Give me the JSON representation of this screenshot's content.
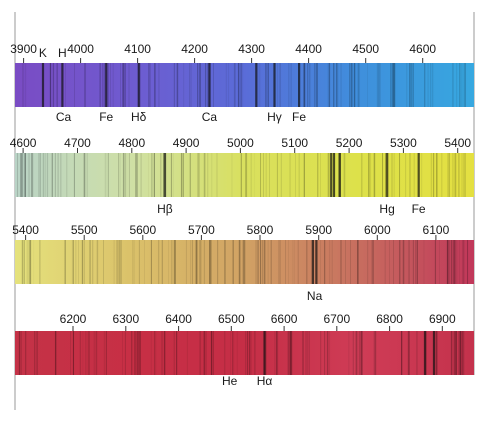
{
  "colors": {
    "frame": "#9a9a9a",
    "label": "#1a1a1a",
    "band_1": [
      "#7a4cc4",
      "#6f5bd0",
      "#5a6cd8",
      "#3f8fdc",
      "#37a8e0"
    ],
    "band_2": [
      "#b9d3c6",
      "#cfe0a6",
      "#d9e05e",
      "#dde14a",
      "#e4e041"
    ],
    "band_3": [
      "#e5e27c",
      "#dbc26a",
      "#d1a264",
      "#c76d5f",
      "#c1375a"
    ],
    "band_4": [
      "#c43247",
      "#c72f45",
      "#c52e46",
      "#cf3c56",
      "#c4324c"
    ]
  },
  "bands": [
    {
      "ticks": [
        {
          "label": "3900",
          "w": 3900
        },
        {
          "label": "4000",
          "w": 4000
        },
        {
          "label": "4100",
          "w": 4100
        },
        {
          "label": "4200",
          "w": 4200
        },
        {
          "label": "4300",
          "w": 4300
        },
        {
          "label": "4400",
          "w": 4400
        },
        {
          "label": "4500",
          "w": 4500
        },
        {
          "label": "4600",
          "w": 4600
        }
      ],
      "top_labels": [
        {
          "text": "K",
          "w": 3934
        },
        {
          "text": "H",
          "w": 3968
        }
      ],
      "bottom_labels": [
        {
          "text": "Ca",
          "w": 3970
        },
        {
          "text": "Fe",
          "w": 4045
        },
        {
          "text": "Hδ",
          "w": 4102
        },
        {
          "text": "Ca",
          "w": 4226
        },
        {
          "text": "Hγ",
          "w": 4340
        },
        {
          "text": "Fe",
          "w": 4383
        }
      ]
    },
    {
      "ticks": [
        {
          "label": "4600",
          "w": 4600
        },
        {
          "label": "4700",
          "w": 4700
        },
        {
          "label": "4800",
          "w": 4800
        },
        {
          "label": "4900",
          "w": 4900
        },
        {
          "label": "5000",
          "w": 5000
        },
        {
          "label": "5100",
          "w": 5100
        },
        {
          "label": "5200",
          "w": 5200
        },
        {
          "label": "5300",
          "w": 5300
        },
        {
          "label": "5400",
          "w": 5400
        }
      ],
      "top_labels": [],
      "bottom_labels": [
        {
          "text": "Hβ",
          "w": 4861
        },
        {
          "text": "Hg",
          "w": 5270
        },
        {
          "text": "Fe",
          "w": 5328
        }
      ]
    },
    {
      "ticks": [
        {
          "label": "5400",
          "w": 5400
        },
        {
          "label": "5500",
          "w": 5500
        },
        {
          "label": "5600",
          "w": 5600
        },
        {
          "label": "5700",
          "w": 5700
        },
        {
          "label": "5800",
          "w": 5800
        },
        {
          "label": "5900",
          "w": 5900
        },
        {
          "label": "6000",
          "w": 6000
        },
        {
          "label": "6100",
          "w": 6100
        }
      ],
      "top_labels": [],
      "bottom_labels": [
        {
          "text": "Na",
          "w": 5893
        }
      ]
    },
    {
      "ticks": [
        {
          "label": "6200",
          "w": 6200
        },
        {
          "label": "6300",
          "w": 6300
        },
        {
          "label": "6400",
          "w": 6400
        },
        {
          "label": "6500",
          "w": 6500
        },
        {
          "label": "6600",
          "w": 6600
        },
        {
          "label": "6700",
          "w": 6700
        },
        {
          "label": "6800",
          "w": 6800
        },
        {
          "label": "6900",
          "w": 6900
        }
      ],
      "top_labels": [],
      "bottom_labels": [
        {
          "text": "He",
          "w": 6497
        },
        {
          "text": "Hα",
          "w": 6563
        }
      ]
    }
  ]
}
